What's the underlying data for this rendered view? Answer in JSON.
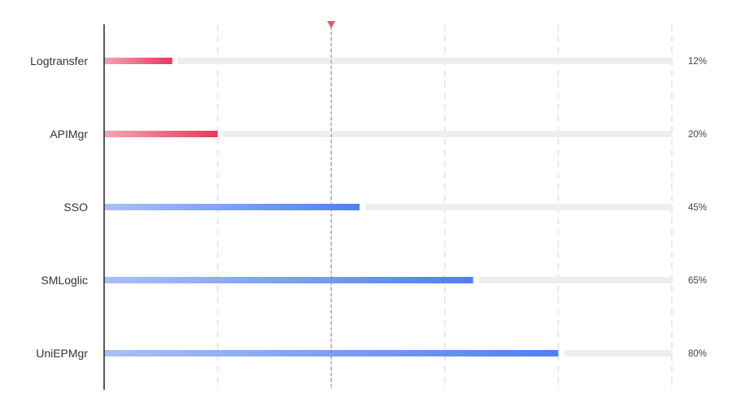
{
  "chart_data": {
    "type": "bar",
    "orientation": "horizontal",
    "categories": [
      "Logtransfer",
      "APIMgr",
      "SSO",
      "SMLoglic",
      "UniEPMgr"
    ],
    "values": [
      12,
      20,
      45,
      65,
      80
    ],
    "value_labels": [
      "12%",
      "20%",
      "45%",
      "65%",
      "80%"
    ],
    "unit": "%",
    "xlim": [
      0,
      100
    ],
    "grid_lines": [
      20,
      40,
      60,
      80,
      100
    ],
    "threshold": 40,
    "threshold_color": "#e05a6a",
    "low_threshold_gradient": [
      "#f7a4b2",
      "#e8385c"
    ],
    "high_threshold_gradient": [
      "#a9c0f6",
      "#4f80ef"
    ],
    "track_color": "#eeeeee",
    "title": "",
    "xlabel": "",
    "ylabel": ""
  }
}
